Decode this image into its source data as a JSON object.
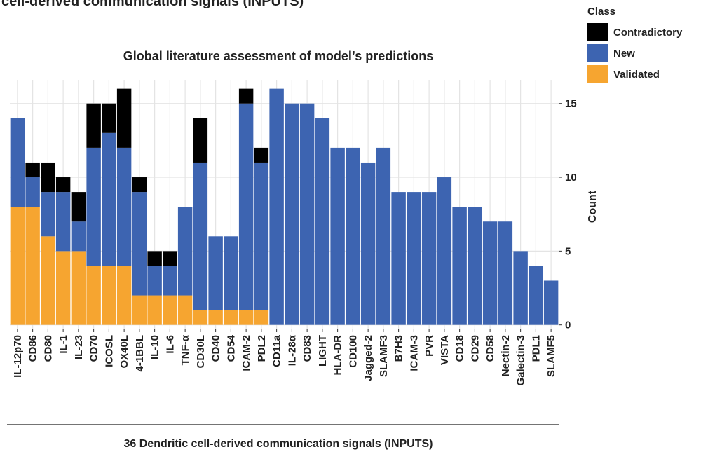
{
  "chart_data": {
    "type": "stacked-bar",
    "top_text": "cell-derived communication signals (INPUTS)",
    "title": "Global literature assessment of model’s predictions",
    "x_label": "36 Dendritic cell-derived communication signals (INPUTS)",
    "y_label": "Count",
    "legend_title": "Class",
    "categories": [
      "IL-12p70",
      "CD86",
      "CD80",
      "IL-1",
      "IL-23",
      "CD70",
      "ICOSL",
      "OX40L",
      "4-1BBL",
      "IL-10",
      "IL-6",
      "TNF-α",
      "CD30L",
      "CD40",
      "CD54",
      "ICAM-2",
      "PDL2",
      "CD11a",
      "IL-28α",
      "CD83",
      "LIGHT",
      "HLA-DR",
      "CD100",
      "Jagged-2",
      "SLAMF3",
      "B7H3",
      "ICAM-3",
      "PVR",
      "VISTA",
      "CD18",
      "CD29",
      "CD58",
      "Nectin-2",
      "Galectin-3",
      "PDL1",
      "SLAMF5"
    ],
    "series": [
      {
        "name": "Contradictory",
        "color": "#000000",
        "values": [
          0,
          1,
          2,
          1,
          2,
          3,
          2,
          4,
          1,
          1,
          1,
          0,
          3,
          0,
          0,
          1,
          1,
          0,
          0,
          0,
          0,
          0,
          0,
          0,
          0,
          0,
          0,
          0,
          0,
          0,
          0,
          0,
          0,
          0,
          0,
          0
        ]
      },
      {
        "name": "New",
        "color": "#3d64b1",
        "values": [
          6,
          2,
          3,
          4,
          2,
          8,
          9,
          8,
          7,
          2,
          2,
          6,
          10,
          5,
          5,
          14,
          10,
          16,
          15,
          15,
          14,
          12,
          12,
          11,
          12,
          9,
          9,
          9,
          10,
          8,
          8,
          7,
          7,
          5,
          4,
          3
        ]
      },
      {
        "name": "Validated",
        "color": "#f6a530",
        "values": [
          8,
          8,
          6,
          5,
          5,
          4,
          4,
          4,
          2,
          2,
          2,
          2,
          1,
          1,
          1,
          1,
          1,
          0,
          0,
          0,
          0,
          0,
          0,
          0,
          0,
          0,
          0,
          0,
          0,
          0,
          0,
          0,
          0,
          0,
          0,
          0
        ]
      }
    ],
    "ylim": [
      -0.3,
      16.6
    ],
    "yticks": [
      0,
      5,
      10,
      15
    ],
    "y_axis_side": "right",
    "grid": true
  }
}
